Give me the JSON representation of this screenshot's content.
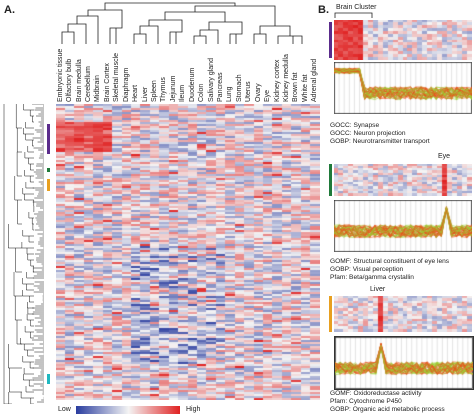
{
  "panels": {
    "a": "A.",
    "b": "B."
  },
  "tissues": [
    "Embryonic tissue",
    "Olfactory bulb",
    "Brain medulla",
    "Cerebellum",
    "Midbrain",
    "Brain Cortex",
    "Skeletal muscle",
    "Diaphragm",
    "Heart",
    "Liver",
    "Spleen",
    "Thymus",
    "Jejunum",
    "Ileum",
    "Duodenum",
    "Colon",
    "Salivary gland",
    "Pancreas",
    "Lung",
    "Stomach",
    "Uterus",
    "Ovary",
    "Eye",
    "Kidney cortex",
    "Kidney medulla",
    "Brown fat",
    "White fat",
    "Adrenal gland"
  ],
  "legend": {
    "low": "Low",
    "high": "High"
  },
  "clusters": [
    {
      "title": "Brain Cluster",
      "terms": [
        "GOCC: Synapse",
        "GOCC: Neuron projection",
        "GOBP: Neurotransmitter transport"
      ],
      "color": "#5b2c8c"
    },
    {
      "title": "Eye",
      "terms": [
        "GOMF: Structural constituent of eye lens",
        "GOBP: Visual perception",
        "Pfam: Beta/gamma crystallin"
      ],
      "color": "#1f7a3a"
    },
    {
      "title": "Liver",
      "terms": [
        "GOMF: Oxidoreductase activity",
        "Pfam: Cytochrome P450",
        "GOBP: Organic acid metabolic process"
      ],
      "color": "#e8a020"
    }
  ],
  "colors": {
    "low": "#2b3ea0",
    "mid": "#f4f4f4",
    "high": "#e02020",
    "line_hi": "#e8501a",
    "line_lo": "#9acd32"
  }
}
